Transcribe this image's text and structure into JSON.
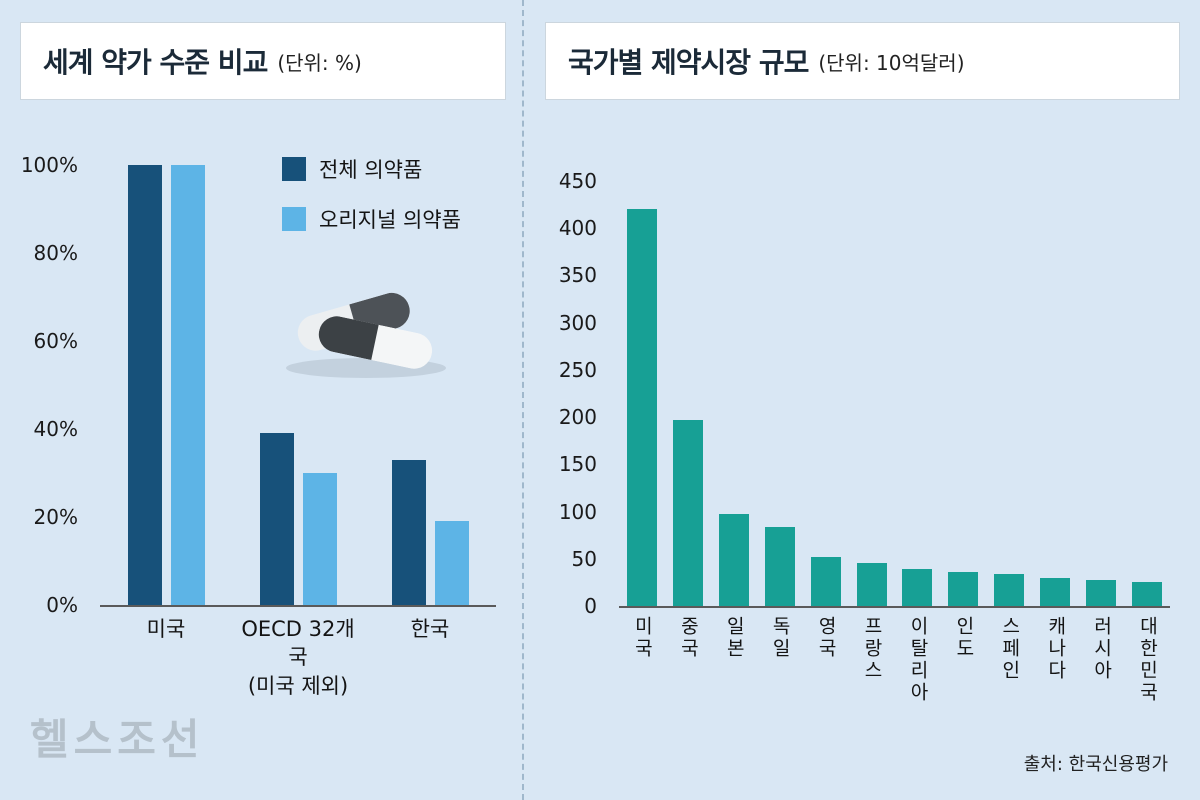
{
  "colors": {
    "background": "#d9e7f4",
    "dark_blue": "#17517a",
    "light_blue": "#5db4e6",
    "teal": "#17a095",
    "axis": "#5a5a5a"
  },
  "left_panel": {
    "title": "세계 약가 수준 비교",
    "unit": "(단위: %)"
  },
  "right_panel": {
    "title": "국가별 제약시장 규모",
    "unit": "(단위: 10억달러)"
  },
  "icons": {
    "capsules": "capsules-illustration"
  },
  "watermark": "헬스조선",
  "source": "출처: 한국신용평가",
  "chart_data": [
    {
      "type": "bar",
      "title": "세계 약가 수준 비교 (단위: %)",
      "categories": [
        "미국",
        "OECD 32개국\n(미국 제외)",
        "한국"
      ],
      "series": [
        {
          "name": "전체 의약품",
          "color": "#17517a",
          "values": [
            100,
            39,
            33
          ]
        },
        {
          "name": "오리지널 의약품",
          "color": "#5db4e6",
          "values": [
            100,
            30,
            19
          ]
        }
      ],
      "ylim": [
        0,
        100
      ],
      "yticks": [
        0,
        20,
        40,
        60,
        80,
        100
      ],
      "ytick_suffix": "%",
      "grid": false,
      "legend_position": "top-right"
    },
    {
      "type": "bar",
      "title": "국가별 제약시장 규모 (단위: 10억달러)",
      "categories": [
        "미국",
        "중국",
        "일본",
        "독일",
        "영국",
        "프랑스",
        "이탈리아",
        "인도",
        "스페인",
        "캐나다",
        "러시아",
        "대한민국"
      ],
      "values": [
        420,
        197,
        97,
        84,
        52,
        46,
        39,
        36,
        34,
        30,
        28,
        25
      ],
      "color": "#17a095",
      "ylim": [
        0,
        450
      ],
      "yticks": [
        0,
        50,
        100,
        150,
        200,
        250,
        300,
        350,
        400,
        450
      ],
      "ytick_suffix": "",
      "grid": false
    }
  ]
}
